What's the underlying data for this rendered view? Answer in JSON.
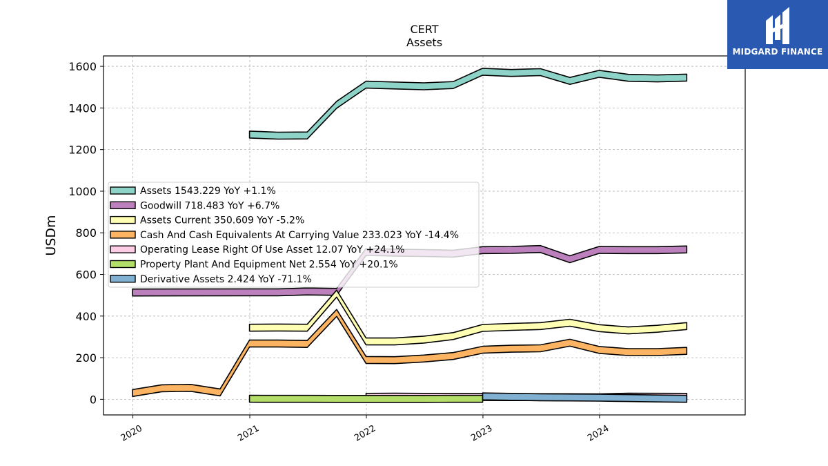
{
  "chart_data": {
    "type": "area",
    "title": "CERT",
    "subtitle": "Assets",
    "ylabel": "USDm",
    "xlabel": "",
    "ylim": [
      -75,
      1650
    ],
    "xlim": [
      "2019-10-01",
      "2025-04-01"
    ],
    "yticks": [
      0,
      200,
      400,
      600,
      800,
      1000,
      1200,
      1400,
      1600
    ],
    "xticks": [
      "2020",
      "2021",
      "2022",
      "2023",
      "2024"
    ],
    "grid": true,
    "legend_position": "center-left",
    "series": [
      {
        "name": "Assets",
        "legend": "Assets  1543.229 YoY +1.1%",
        "color": "#8dd3c7",
        "x": [
          "2020-12-31",
          "2021-03-31",
          "2021-06-30",
          "2021-09-30",
          "2021-12-31",
          "2022-03-31",
          "2022-06-30",
          "2022-09-30",
          "2022-12-31",
          "2023-03-31",
          "2023-06-30",
          "2023-09-30",
          "2023-12-31",
          "2024-03-31",
          "2024-06-30",
          "2024-09-30"
        ],
        "values": [
          1272,
          1267,
          1268,
          1415,
          1512,
          1508,
          1504,
          1510,
          1574,
          1568,
          1572,
          1530,
          1564,
          1545,
          1542,
          1546
        ]
      },
      {
        "name": "Goodwill",
        "legend": "Goodwill  718.483 YoY +6.7%",
        "color": "#bc80bd",
        "x": [
          "2019-12-31",
          "2020-12-31",
          "2021-03-31",
          "2021-06-30",
          "2021-09-30",
          "2021-12-31",
          "2022-03-31",
          "2022-06-30",
          "2022-09-30",
          "2022-12-31",
          "2023-03-31",
          "2023-06-30",
          "2023-09-30",
          "2023-12-31",
          "2024-03-31",
          "2024-06-30",
          "2024-09-30"
        ],
        "values": [
          513,
          514,
          514,
          518,
          516,
          708,
          705,
          703,
          700,
          717,
          718,
          722,
          673,
          718,
          717,
          717,
          720
        ]
      },
      {
        "name": "Assets Current",
        "legend": "Assets Current  350.609 YoY -5.2%",
        "color": "#ffffb3",
        "x": [
          "2020-12-31",
          "2021-03-31",
          "2021-06-30",
          "2021-09-30",
          "2021-12-31",
          "2022-03-31",
          "2022-06-30",
          "2022-09-30",
          "2022-12-31",
          "2023-03-31",
          "2023-06-30",
          "2023-09-30",
          "2023-12-31",
          "2024-03-31",
          "2024-06-30",
          "2024-09-30"
        ],
        "values": [
          344,
          345,
          344,
          508,
          278,
          278,
          287,
          304,
          343,
          348,
          352,
          368,
          342,
          331,
          339,
          352
        ]
      },
      {
        "name": "Cash And Cash Equivalents At Carrying Value",
        "legend": "Cash And Cash Equivalents At Carrying Value  233.023 YoY -14.4%",
        "color": "#fdb462",
        "x": [
          "2019-12-31",
          "2020-03-31",
          "2020-06-30",
          "2020-09-30",
          "2020-12-31",
          "2021-03-31",
          "2021-06-30",
          "2021-09-30",
          "2021-12-31",
          "2022-03-31",
          "2022-06-30",
          "2022-09-30",
          "2022-12-31",
          "2023-03-31",
          "2023-06-30",
          "2023-09-30",
          "2023-12-31",
          "2024-03-31",
          "2024-06-30",
          "2024-09-30"
        ],
        "values": [
          30,
          53,
          55,
          33,
          268,
          268,
          266,
          415,
          189,
          188,
          196,
          208,
          238,
          243,
          245,
          272,
          237,
          227,
          227,
          233
        ]
      },
      {
        "name": "Operating Lease Right Of Use Asset",
        "legend": "Operating Lease Right Of Use Asset  12.07 YoY +24.1%",
        "color": "#fccde5",
        "x": [
          "2021-12-31",
          "2022-03-31",
          "2022-06-30",
          "2022-09-30",
          "2022-12-31",
          "2023-03-31",
          "2023-06-30",
          "2023-09-30",
          "2023-12-31",
          "2024-03-31",
          "2024-06-30",
          "2024-09-30"
        ],
        "values": [
          12,
          12.5,
          12,
          11.5,
          11,
          10.5,
          10.2,
          9.8,
          9.7,
          12.5,
          12.3,
          12.07
        ]
      },
      {
        "name": "Property Plant And Equipment Net",
        "legend": "Property Plant And Equipment Net  2.554 YoY +20.1%",
        "color": "#b3de69",
        "x": [
          "2020-12-31",
          "2021-03-31",
          "2021-06-30",
          "2021-09-30",
          "2021-12-31",
          "2022-03-31",
          "2022-06-30",
          "2022-09-30",
          "2022-12-31"
        ],
        "values": [
          2.6,
          2.4,
          2.2,
          2.1,
          2.1,
          2.0,
          2.1,
          2.2,
          2.3
        ]
      },
      {
        "name": "Derivative Assets",
        "legend": "Derivative Assets  2.424 YoY -71.1%",
        "color": "#80b1d3",
        "x": [
          "2022-12-31",
          "2023-03-31",
          "2023-06-30",
          "2023-09-30",
          "2023-12-31",
          "2024-03-31",
          "2024-06-30",
          "2024-09-30"
        ],
        "values": [
          14,
          12,
          10,
          9,
          8,
          6,
          4,
          2.4
        ]
      }
    ]
  },
  "branding": {
    "logo_text": "MIDGARD FINANCE",
    "logo_color": "#2a59b1"
  }
}
